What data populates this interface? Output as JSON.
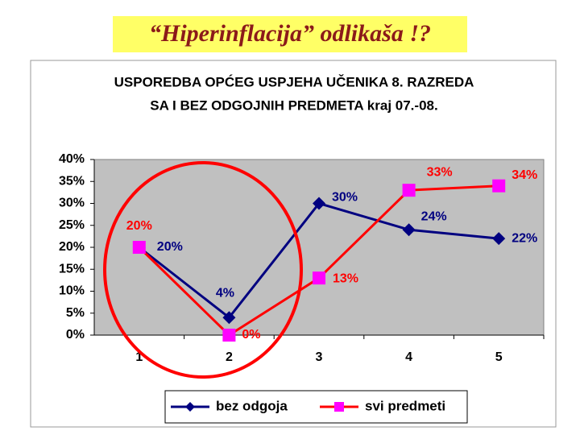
{
  "slide_title": "“Hiperinflacija” odlikaša !?",
  "chart_data": {
    "type": "line",
    "title": [
      "USPOREDBA OPĆEG USPJEHA UČENIKA 8. RAZREDA",
      "SA I BEZ ODGOJNIH PREDMETA kraj 07.-08."
    ],
    "categories": [
      "1",
      "2",
      "3",
      "4",
      "5"
    ],
    "series": [
      {
        "name": "bez odgoja",
        "color": "#000080",
        "marker": "diamond",
        "values": [
          20,
          4,
          30,
          24,
          22
        ],
        "value_labels": [
          "20%",
          "4%",
          "30%",
          "24%",
          "22%"
        ]
      },
      {
        "name": "svi predmeti",
        "color": "#ff00ff",
        "line_color": "#ff0000",
        "marker": "square",
        "values": [
          20,
          0,
          13,
          33,
          34
        ],
        "value_labels": [
          "20%",
          "0%",
          "13%",
          "33%",
          "34%"
        ]
      }
    ],
    "ylim": [
      0,
      40
    ],
    "yticks": [
      {
        "value": 0,
        "label": "0%"
      },
      {
        "value": 5,
        "label": "5%"
      },
      {
        "value": 10,
        "label": "10%"
      },
      {
        "value": 15,
        "label": "15%"
      },
      {
        "value": 20,
        "label": "20%"
      },
      {
        "value": 25,
        "label": "25%"
      },
      {
        "value": 30,
        "label": "30%"
      },
      {
        "value": 35,
        "label": "35%"
      },
      {
        "value": 40,
        "label": "40%"
      }
    ],
    "grid": false,
    "legend": "bottom"
  }
}
